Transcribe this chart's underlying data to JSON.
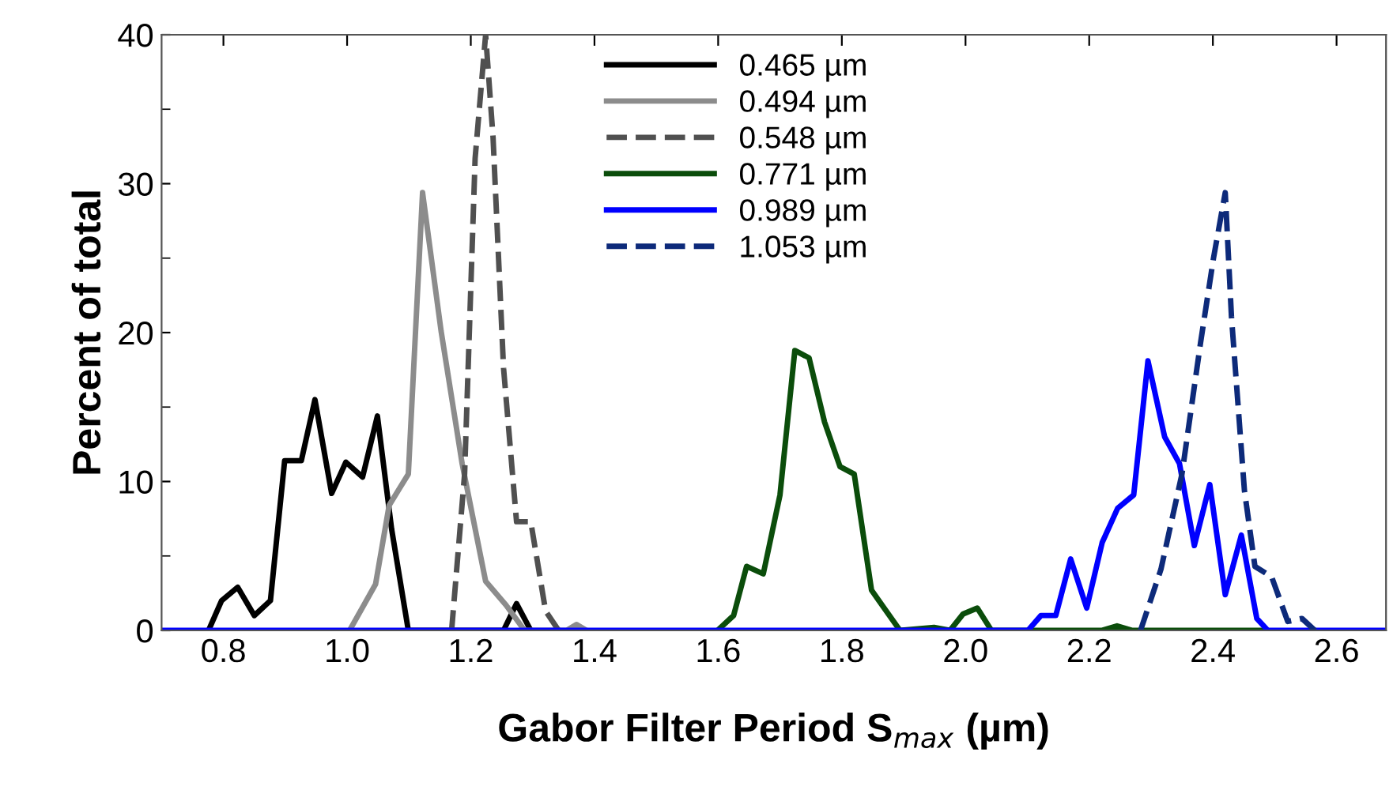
{
  "chart_data": {
    "type": "line",
    "xlabel": "Gabor Filter Period S$_{max}$ (µm)",
    "ylabel": "Percent of total",
    "xlim": [
      0.7,
      2.68
    ],
    "xticks": [
      0.8,
      {
        "value": 1,
        "label": "1.0"
      },
      1.2,
      1.4,
      1.6,
      1.8,
      {
        "value": 2,
        "label": "2.0"
      },
      2.2,
      2.4,
      2.6
    ],
    "ylim": [
      0,
      40
    ],
    "yticks": [
      0,
      10,
      20,
      30,
      40
    ],
    "grid": false,
    "legend": "top",
    "marker": "none",
    "series": [
      {
        "name": "0.465 µm",
        "color": "#000000",
        "line_style": "solid",
        "x": [
          0.776,
          0.797,
          0.823,
          0.85,
          0.876,
          0.899,
          0.926,
          0.948,
          0.975,
          0.998,
          1.025,
          1.049,
          1.072,
          1.099,
          1.253,
          1.274,
          1.297
        ],
        "values": [
          0,
          2.0,
          2.9,
          1.0,
          2.0,
          11.4,
          11.4,
          15.5,
          9.2,
          11.3,
          10.3,
          14.4,
          6.8,
          0,
          0,
          1.8,
          0
        ]
      },
      {
        "name": "0.494 µm",
        "color": "#8c8c8c",
        "line_style": "solid",
        "x": [
          1.004,
          1.046,
          1.068,
          1.099,
          1.122,
          1.152,
          1.186,
          1.224,
          1.257,
          1.287,
          1.355,
          1.371,
          1.387
        ],
        "values": [
          0,
          3.1,
          8.4,
          10.5,
          29.4,
          20.1,
          11.2,
          3.3,
          1.7,
          0,
          0,
          0.4,
          0
        ]
      },
      {
        "name": "0.548 µm",
        "color": "#505050",
        "line_style": "dashed",
        "x": [
          1.169,
          1.19,
          1.207,
          1.224,
          1.236,
          1.253,
          1.274,
          1.297,
          1.321,
          1.342
        ],
        "values": [
          0,
          10.5,
          31.7,
          40,
          33.1,
          17.6,
          7.3,
          7.3,
          1.3,
          0
        ]
      },
      {
        "name": "0.771 µm",
        "color": "#0b4d0b",
        "line_style": "solid",
        "x": [
          1.599,
          1.625,
          1.646,
          1.673,
          1.7,
          1.724,
          1.747,
          1.772,
          1.797,
          1.82,
          1.848,
          1.894,
          1.949,
          1.975,
          1.996,
          2.019,
          2.042,
          2.22,
          2.245,
          2.27,
          2.48
        ],
        "values": [
          0,
          1.0,
          4.3,
          3.8,
          9.1,
          18.8,
          18.3,
          14.0,
          11.0,
          10.5,
          2.7,
          0,
          0.2,
          0,
          1.1,
          1.5,
          0,
          0,
          0.3,
          0,
          0
        ]
      },
      {
        "name": "0.989 µm",
        "color": "#0000ff",
        "line_style": "solid",
        "x": [
          0.7,
          2.101,
          2.122,
          2.146,
          2.17,
          2.196,
          2.221,
          2.246,
          2.272,
          2.295,
          2.322,
          2.346,
          2.37,
          2.395,
          2.42,
          2.446,
          2.471,
          2.489,
          2.68
        ],
        "values": [
          0,
          0,
          1.0,
          1.0,
          4.8,
          1.5,
          5.9,
          8.2,
          9.1,
          18.1,
          13.0,
          11.2,
          5.7,
          9.8,
          2.4,
          6.4,
          0.8,
          0,
          0
        ]
      },
      {
        "name": "1.053 µm",
        "color": "#0d2a7a",
        "line_style": "dashed",
        "x": [
          2.283,
          2.316,
          2.35,
          2.38,
          2.401,
          2.42,
          2.43,
          2.451,
          2.468,
          2.495,
          2.521,
          2.544,
          2.565
        ],
        "values": [
          0,
          4.1,
          10.5,
          19.3,
          25.0,
          29.4,
          21.1,
          9.4,
          4.3,
          3.6,
          0.6,
          0.8,
          0
        ]
      }
    ]
  }
}
